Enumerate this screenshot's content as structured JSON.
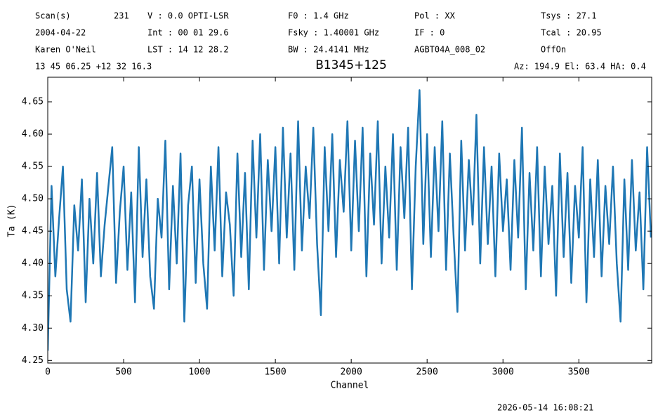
{
  "chart_data": {
    "type": "line",
    "header": [
      [
        "Scan(s)",
        "231",
        "V   : 0.0 OPTI-LSR",
        "F0   :  1.4 GHz",
        "Pol :   XX",
        "Tsys   :  27.1"
      ],
      [
        "2004-04-22",
        "Int : 00 01 29.6",
        "Fsky :  1.40001 GHz",
        "IF  :    0",
        "Tcal   :  20.95"
      ],
      [
        "Karen O'Neil",
        "LST : 14 12 28.2",
        "BW   :  24.4141 MHz",
        "AGBT04A_008_02",
        "OffOn"
      ],
      [
        "13 45 06.25  +12 32 16.3",
        "Az: 194.9  El: 63.4  HA: 0.4"
      ]
    ],
    "title": "B1345+125",
    "x_label": "Channel",
    "y_label": "Ta (K)",
    "footer": "2026-05-14 16:08:21",
    "xlim": [
      0,
      3980
    ],
    "ylim": [
      4.246,
      4.688
    ],
    "xticks": [
      0,
      500,
      1000,
      1500,
      2000,
      2500,
      3000,
      3500
    ],
    "yticks": [
      4.25,
      {
        "value": 4.3,
        "label": "4.30"
      },
      4.35,
      {
        "value": 4.4,
        "label": "4.40"
      },
      4.45,
      {
        "value": 4.5,
        "label": "4.50"
      },
      4.55,
      {
        "value": 4.6,
        "label": "4.60"
      },
      4.65
    ],
    "series": [
      {
        "color": "#1f77b4",
        "x": [
          0,
          25,
          50,
          75,
          100,
          125,
          150,
          175,
          200,
          225,
          250,
          275,
          300,
          325,
          350,
          375,
          400,
          425,
          450,
          475,
          500,
          525,
          550,
          575,
          600,
          625,
          650,
          675,
          700,
          725,
          750,
          775,
          800,
          825,
          850,
          875,
          900,
          925,
          950,
          975,
          1000,
          1025,
          1050,
          1075,
          1100,
          1125,
          1150,
          1175,
          1200,
          1225,
          1250,
          1275,
          1300,
          1325,
          1350,
          1375,
          1400,
          1425,
          1450,
          1475,
          1500,
          1525,
          1550,
          1575,
          1600,
          1625,
          1650,
          1675,
          1700,
          1725,
          1750,
          1775,
          1800,
          1825,
          1850,
          1875,
          1900,
          1925,
          1950,
          1975,
          2000,
          2025,
          2050,
          2075,
          2100,
          2125,
          2150,
          2175,
          2200,
          2225,
          2250,
          2275,
          2300,
          2325,
          2350,
          2375,
          2400,
          2425,
          2450,
          2475,
          2500,
          2525,
          2550,
          2575,
          2600,
          2625,
          2650,
          2675,
          2700,
          2725,
          2750,
          2775,
          2800,
          2825,
          2850,
          2875,
          2900,
          2925,
          2950,
          2975,
          3000,
          3025,
          3050,
          3075,
          3100,
          3125,
          3150,
          3175,
          3200,
          3225,
          3250,
          3275,
          3300,
          3325,
          3350,
          3375,
          3400,
          3425,
          3450,
          3475,
          3500,
          3525,
          3550,
          3575,
          3600,
          3625,
          3650,
          3675,
          3700,
          3725,
          3750,
          3775,
          3800,
          3825,
          3850,
          3875,
          3900,
          3925,
          3950,
          3975
        ],
        "values": [
          4.265,
          4.52,
          4.38,
          4.47,
          4.55,
          4.36,
          4.31,
          4.49,
          4.42,
          4.53,
          4.34,
          4.5,
          4.4,
          4.54,
          4.38,
          4.46,
          4.52,
          4.58,
          4.37,
          4.48,
          4.55,
          4.39,
          4.51,
          4.34,
          4.58,
          4.41,
          4.53,
          4.38,
          4.33,
          4.5,
          4.44,
          4.59,
          4.36,
          4.52,
          4.4,
          4.57,
          4.31,
          4.49,
          4.55,
          4.37,
          4.53,
          4.4,
          4.33,
          4.55,
          4.42,
          4.58,
          4.38,
          4.51,
          4.46,
          4.35,
          4.57,
          4.41,
          4.54,
          4.36,
          4.59,
          4.44,
          4.6,
          4.39,
          4.56,
          4.45,
          4.58,
          4.4,
          4.61,
          4.44,
          4.57,
          4.39,
          4.62,
          4.42,
          4.55,
          4.47,
          4.61,
          4.43,
          4.32,
          4.58,
          4.45,
          4.6,
          4.41,
          4.56,
          4.48,
          4.62,
          4.42,
          4.59,
          4.45,
          4.61,
          4.38,
          4.57,
          4.46,
          4.62,
          4.4,
          4.55,
          4.44,
          4.6,
          4.39,
          4.58,
          4.47,
          4.61,
          4.36,
          4.55,
          4.668,
          4.43,
          4.6,
          4.41,
          4.58,
          4.45,
          4.62,
          4.39,
          4.57,
          4.44,
          4.325,
          4.59,
          4.42,
          4.56,
          4.46,
          4.63,
          4.4,
          4.58,
          4.43,
          4.55,
          4.38,
          4.57,
          4.45,
          4.53,
          4.39,
          4.56,
          4.44,
          4.61,
          4.36,
          4.54,
          4.42,
          4.58,
          4.38,
          4.55,
          4.43,
          4.52,
          4.35,
          4.57,
          4.41,
          4.54,
          4.37,
          4.52,
          4.44,
          4.58,
          4.34,
          4.53,
          4.41,
          4.56,
          4.38,
          4.52,
          4.43,
          4.55,
          4.4,
          4.31,
          4.53,
          4.39,
          4.56,
          4.42,
          4.51,
          4.36,
          4.58,
          4.44
        ]
      }
    ]
  }
}
